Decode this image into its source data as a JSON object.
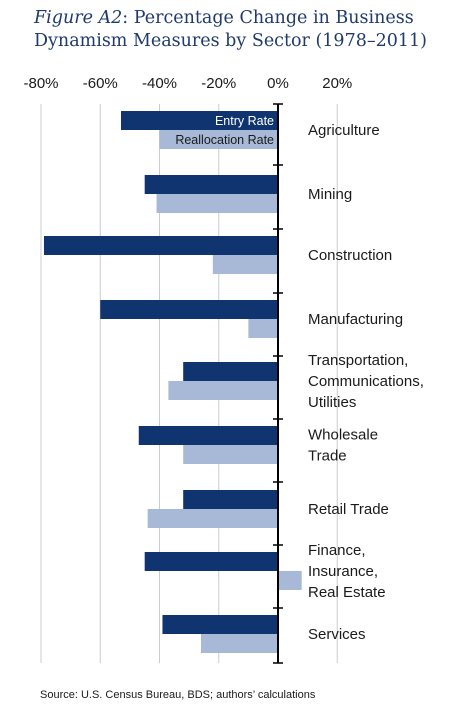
{
  "title": {
    "figure_label": "Figure A2",
    "text": ": Percentage Change in Business Dynamism Measures by Sector (1978–2011)"
  },
  "source": "Source: U.S. Census Bureau, BDS; authors’ calculations",
  "colors": {
    "entry": "#0f3470",
    "reallocation": "#a7b9d6",
    "grid": "#c9ccd1",
    "axis": "#000000",
    "text": "#1a1a1a"
  },
  "chart_data": {
    "type": "bar",
    "orientation": "horizontal",
    "title": "Figure A2: Percentage Change in Business Dynamism Measures by Sector (1978–2011)",
    "xlim": [
      -80,
      20
    ],
    "xticks": [
      -80,
      -60,
      -40,
      -20,
      0,
      20
    ],
    "xtick_labels": [
      "-80%",
      "-60%",
      "-40%",
      "-20%",
      "0%",
      "20%"
    ],
    "grid": true,
    "categories": [
      [
        "Agriculture"
      ],
      [
        "Mining"
      ],
      [
        "Construction"
      ],
      [
        "Manufacturing"
      ],
      [
        "Transportation,",
        "Communications,",
        "Utilities"
      ],
      [
        "Wholesale",
        "Trade"
      ],
      [
        "Retail Trade"
      ],
      [
        "Finance,",
        "Insurance,",
        "Real Estate"
      ],
      [
        "Services"
      ]
    ],
    "series": [
      {
        "name": "Entry Rate",
        "values": [
          -53,
          -45,
          -79,
          -60,
          -32,
          -47,
          -32,
          -45,
          -39
        ]
      },
      {
        "name": "Reallocation Rate",
        "values": [
          -40,
          -41,
          -22,
          -10,
          -37,
          -32,
          -44,
          8,
          -26
        ]
      }
    ]
  }
}
